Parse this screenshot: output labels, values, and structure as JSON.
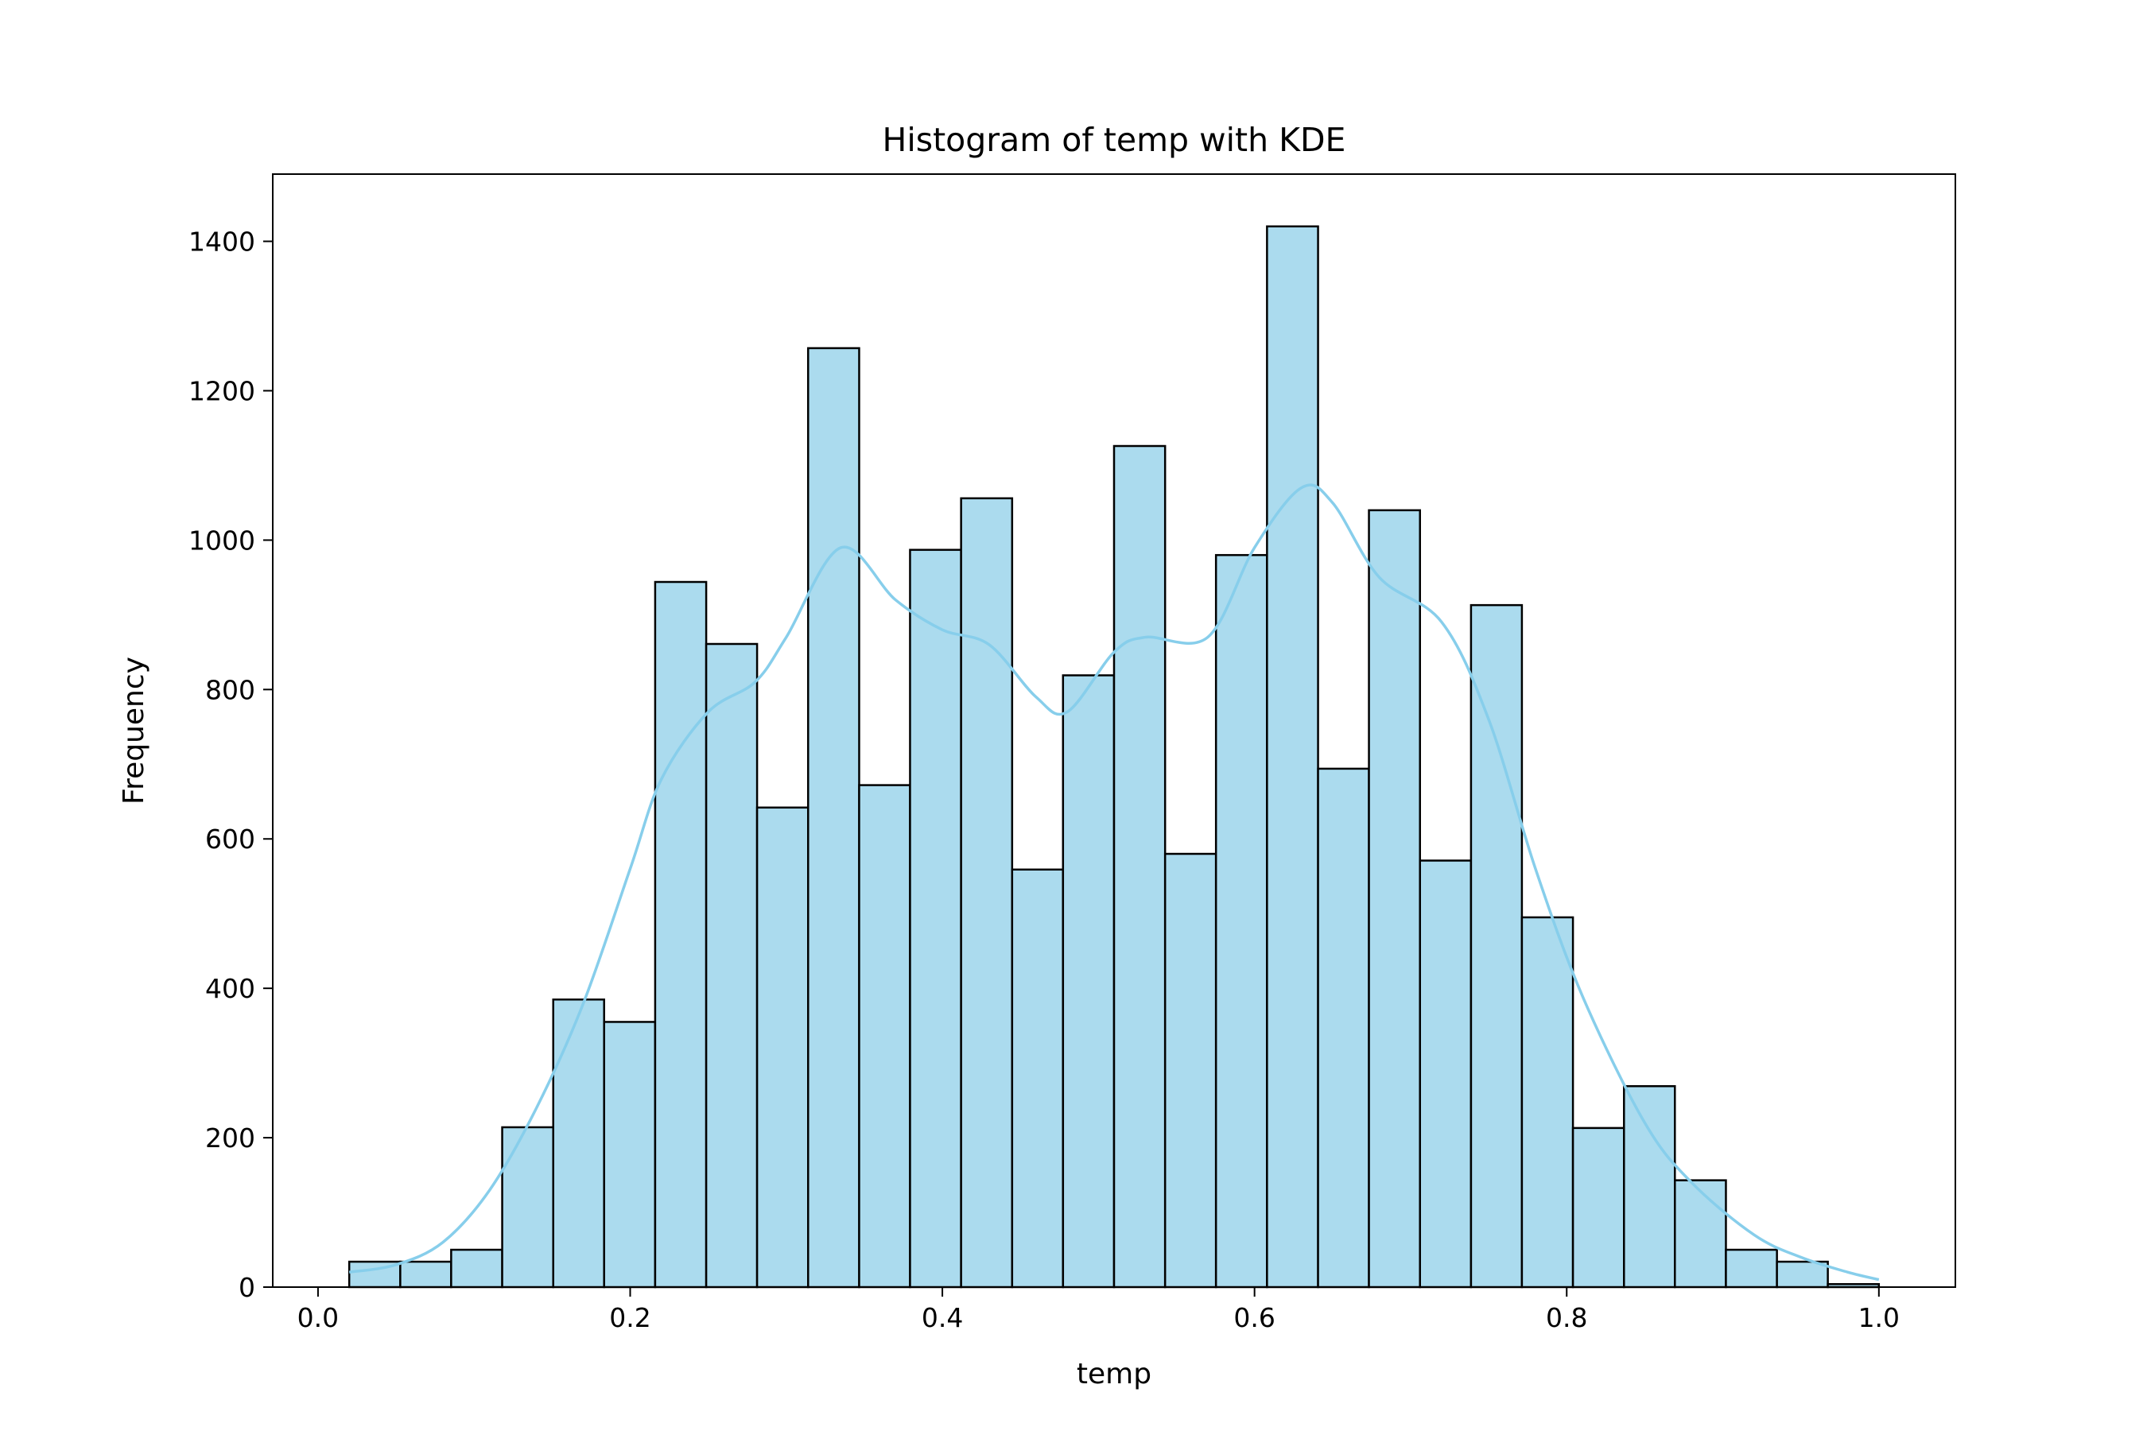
{
  "chart_data": {
    "type": "bar",
    "title": "Histogram of temp with KDE",
    "xlabel": "temp",
    "ylabel": "Frequency",
    "xlim": [
      -0.029,
      1.049
    ],
    "ylim": [
      0,
      1490
    ],
    "x_ticks": [
      0.0,
      0.2,
      0.4,
      0.6,
      0.8,
      1.0
    ],
    "x_tick_labels": [
      "0.0",
      "0.2",
      "0.4",
      "0.6",
      "0.8",
      "1.0"
    ],
    "y_ticks": [
      0,
      200,
      400,
      600,
      800,
      1000,
      1200,
      1400
    ],
    "y_tick_labels": [
      "0",
      "200",
      "400",
      "600",
      "800",
      "1000",
      "1200",
      "1400"
    ],
    "bin_edges": [
      0.02,
      0.0527,
      0.0853,
      0.118,
      0.1507,
      0.1833,
      0.216,
      0.2487,
      0.2813,
      0.314,
      0.3467,
      0.3793,
      0.412,
      0.4447,
      0.4773,
      0.51,
      0.5427,
      0.5753,
      0.608,
      0.6407,
      0.6733,
      0.706,
      0.7387,
      0.7713,
      0.804,
      0.8367,
      0.8693,
      0.902,
      0.9347,
      0.9673,
      1.0
    ],
    "values": [
      34,
      34,
      50,
      214,
      385,
      355,
      944,
      861,
      642,
      1257,
      672,
      987,
      1056,
      559,
      819,
      1126,
      580,
      980,
      1420,
      694,
      1040,
      571,
      913,
      495,
      213,
      269,
      143,
      50,
      34,
      4
    ],
    "kde": {
      "x": [
        0.02,
        0.05,
        0.08,
        0.11,
        0.14,
        0.17,
        0.2,
        0.22,
        0.25,
        0.28,
        0.3,
        0.335,
        0.37,
        0.4,
        0.43,
        0.46,
        0.48,
        0.51,
        0.53,
        0.57,
        0.6,
        0.63,
        0.65,
        0.68,
        0.72,
        0.75,
        0.78,
        0.81,
        0.85,
        0.88,
        0.92,
        0.95,
        0.98,
        1.0
      ],
      "y": [
        20,
        30,
        60,
        130,
        240,
        380,
        560,
        680,
        770,
        810,
        870,
        990,
        920,
        880,
        860,
        790,
        770,
        850,
        870,
        870,
        990,
        1070,
        1050,
        950,
        890,
        760,
        560,
        390,
        220,
        140,
        70,
        40,
        20,
        10
      ]
    },
    "bar_color": "#abdbee",
    "edge_color": "#000000",
    "kde_color": "#87ceeb",
    "grid": false,
    "legend": "none"
  }
}
